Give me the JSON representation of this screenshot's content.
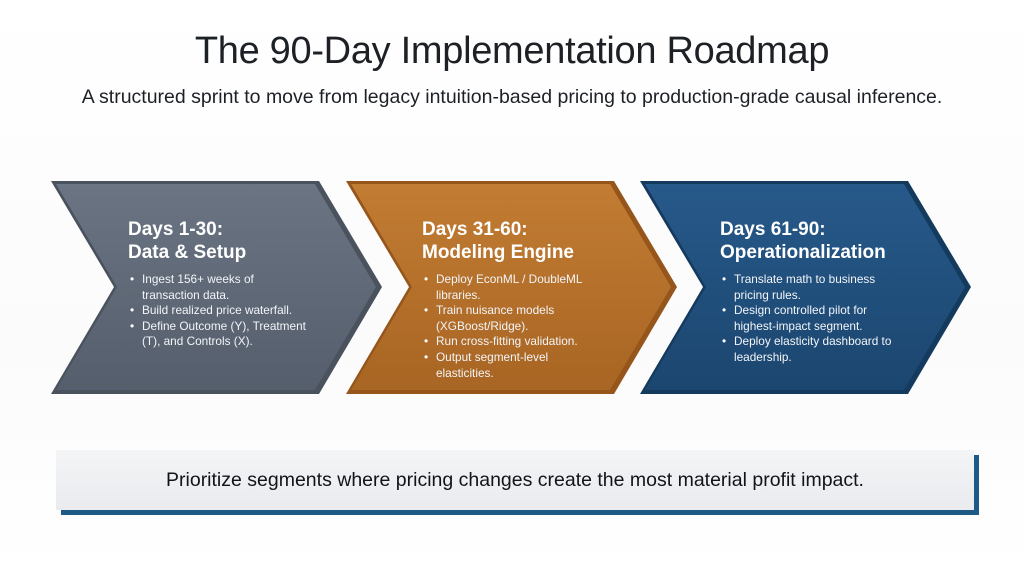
{
  "title": "The 90-Day Implementation Roadmap",
  "subtitle": "A structured sprint to move from legacy intuition-based pricing to production-grade causal inference.",
  "colors": {
    "phase1": "#5f6877",
    "phase2": "#b8722b",
    "phase3": "#1f4e79",
    "callout_accent": "#1d5a86"
  },
  "phases": [
    {
      "days": "Days 1-30:",
      "name": "Data & Setup",
      "bullets": [
        "Ingest 156+ weeks of transaction data.",
        "Build realized price waterfall.",
        "Define Outcome (Y), Treatment (T), and Controls (X)."
      ]
    },
    {
      "days": "Days 31-60:",
      "name": "Modeling Engine",
      "bullets": [
        "Deploy EconML / DoubleML libraries.",
        "Train nuisance models (XGBoost/Ridge).",
        "Run cross-fitting validation.",
        "Output segment-level elasticities."
      ]
    },
    {
      "days": "Days 61-90:",
      "name": "Operationalization",
      "bullets": [
        "Translate math to business pricing rules.",
        "Design controlled pilot for highest-impact segment.",
        "Deploy elasticity dashboard to leadership."
      ]
    }
  ],
  "callout": "Prioritize segments where pricing changes create the most material profit impact."
}
